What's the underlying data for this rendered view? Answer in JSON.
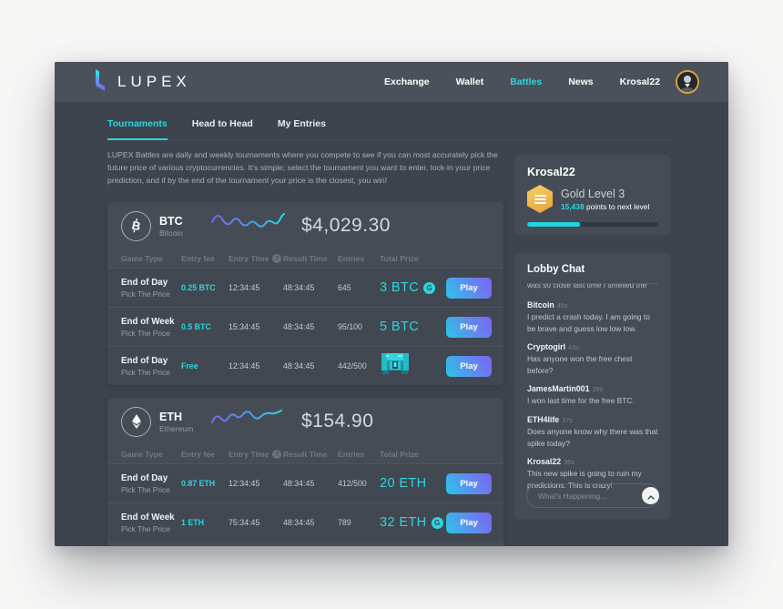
{
  "header": {
    "brand": "LUPEX",
    "nav": [
      "Exchange",
      "Wallet",
      "Battles",
      "News"
    ],
    "active_nav": "Battles",
    "username": "Krosal22"
  },
  "tabs": [
    "Tournaments",
    "Head to Head",
    "My Entries"
  ],
  "active_tab": "Tournaments",
  "intro": "LUPEX Battles are daily and weekly tournaments where you compete to see if you can most accurately pick the future price of various cryptocurrencies. It's simple; select the tournament you want to enter, lock-in your price prediction, and if by the end of the tournament your price is the closest, you win!",
  "ui": {
    "columns": [
      "Game Type",
      "Entry fee",
      "Entry Time",
      "Result Time",
      "Entries",
      "Total Prize"
    ],
    "help_glyph": "?",
    "g_badge": "G"
  },
  "markets": [
    {
      "symbol": "BTC",
      "name": "Bitcoin",
      "price": "$4,029.30",
      "rows": [
        {
          "game": "End of Day",
          "type": "Pick The Price",
          "fee": "0.25 BTC",
          "entry_time": "12:34:45",
          "result_time": "48:34:45",
          "entries": "645",
          "reward": "text",
          "prize": "3 BTC",
          "has_g": true,
          "play": "Play"
        },
        {
          "game": "End of Week",
          "type": "Pick The Price",
          "fee": "0.5 BTC",
          "entry_time": "15:34:45",
          "result_time": "48:34:45",
          "entries": "95/100",
          "reward": "text",
          "prize": "5 BTC",
          "has_g": false,
          "play": "Play"
        },
        {
          "game": "End of Day",
          "type": "Pick The Price",
          "fee": "Free",
          "entry_time": "12:34:45",
          "result_time": "48:34:45",
          "entries": "442/500",
          "reward": "chest",
          "prize": "",
          "has_g": false,
          "play": "Play"
        }
      ]
    },
    {
      "symbol": "ETH",
      "name": "Ethereum",
      "price": "$154.90",
      "rows": [
        {
          "game": "End of Day",
          "type": "Pick The Price",
          "fee": "0.87 ETH",
          "entry_time": "12:34:45",
          "result_time": "48:34:45",
          "entries": "412/500",
          "reward": "text",
          "prize": "20 ETH",
          "has_g": false,
          "play": "Play"
        },
        {
          "game": "End of Week",
          "type": "Pick The Price",
          "fee": "1 ETH",
          "entry_time": "75:34:45",
          "result_time": "48:34:45",
          "entries": "789",
          "reward": "text",
          "prize": "32 ETH",
          "has_g": true,
          "play": "Play"
        }
      ]
    }
  ],
  "profile": {
    "username": "Krosal22",
    "level": "Gold Level 3",
    "points": "15,438",
    "points_suffix": " points to next level",
    "progress_pct": 40
  },
  "chat": {
    "title": "Lobby Chat",
    "clipped_message": "was so close last time I smelled the money",
    "messages": [
      {
        "user": "Bitcoin",
        "time": "45s",
        "text": "I predict a crash today. I am going to be brave and guess low low low."
      },
      {
        "user": "Cryptogirl",
        "time": "43s",
        "text": "Has anyone won the free chest before?"
      },
      {
        "user": "JamesMartin001",
        "time": "39s",
        "text": "I won last time for the free BTC."
      },
      {
        "user": "ETH4life",
        "time": "37s",
        "text": "Does anyone know why there was that spike today?"
      },
      {
        "user": "Krosal22",
        "time": "35s",
        "text": "This new spike is going to ruin my predictions. This is crazy!"
      }
    ],
    "input_placeholder": "What's Happening..."
  },
  "colors": {
    "accent_teal": "#2fd5df",
    "accent_purple": "#7d63f2",
    "gold": "#e2a438",
    "app_bg": "#3d444e",
    "header_bg": "#4a515a",
    "card_bg": "#454c56",
    "page_bg": "#f7f7f6"
  }
}
